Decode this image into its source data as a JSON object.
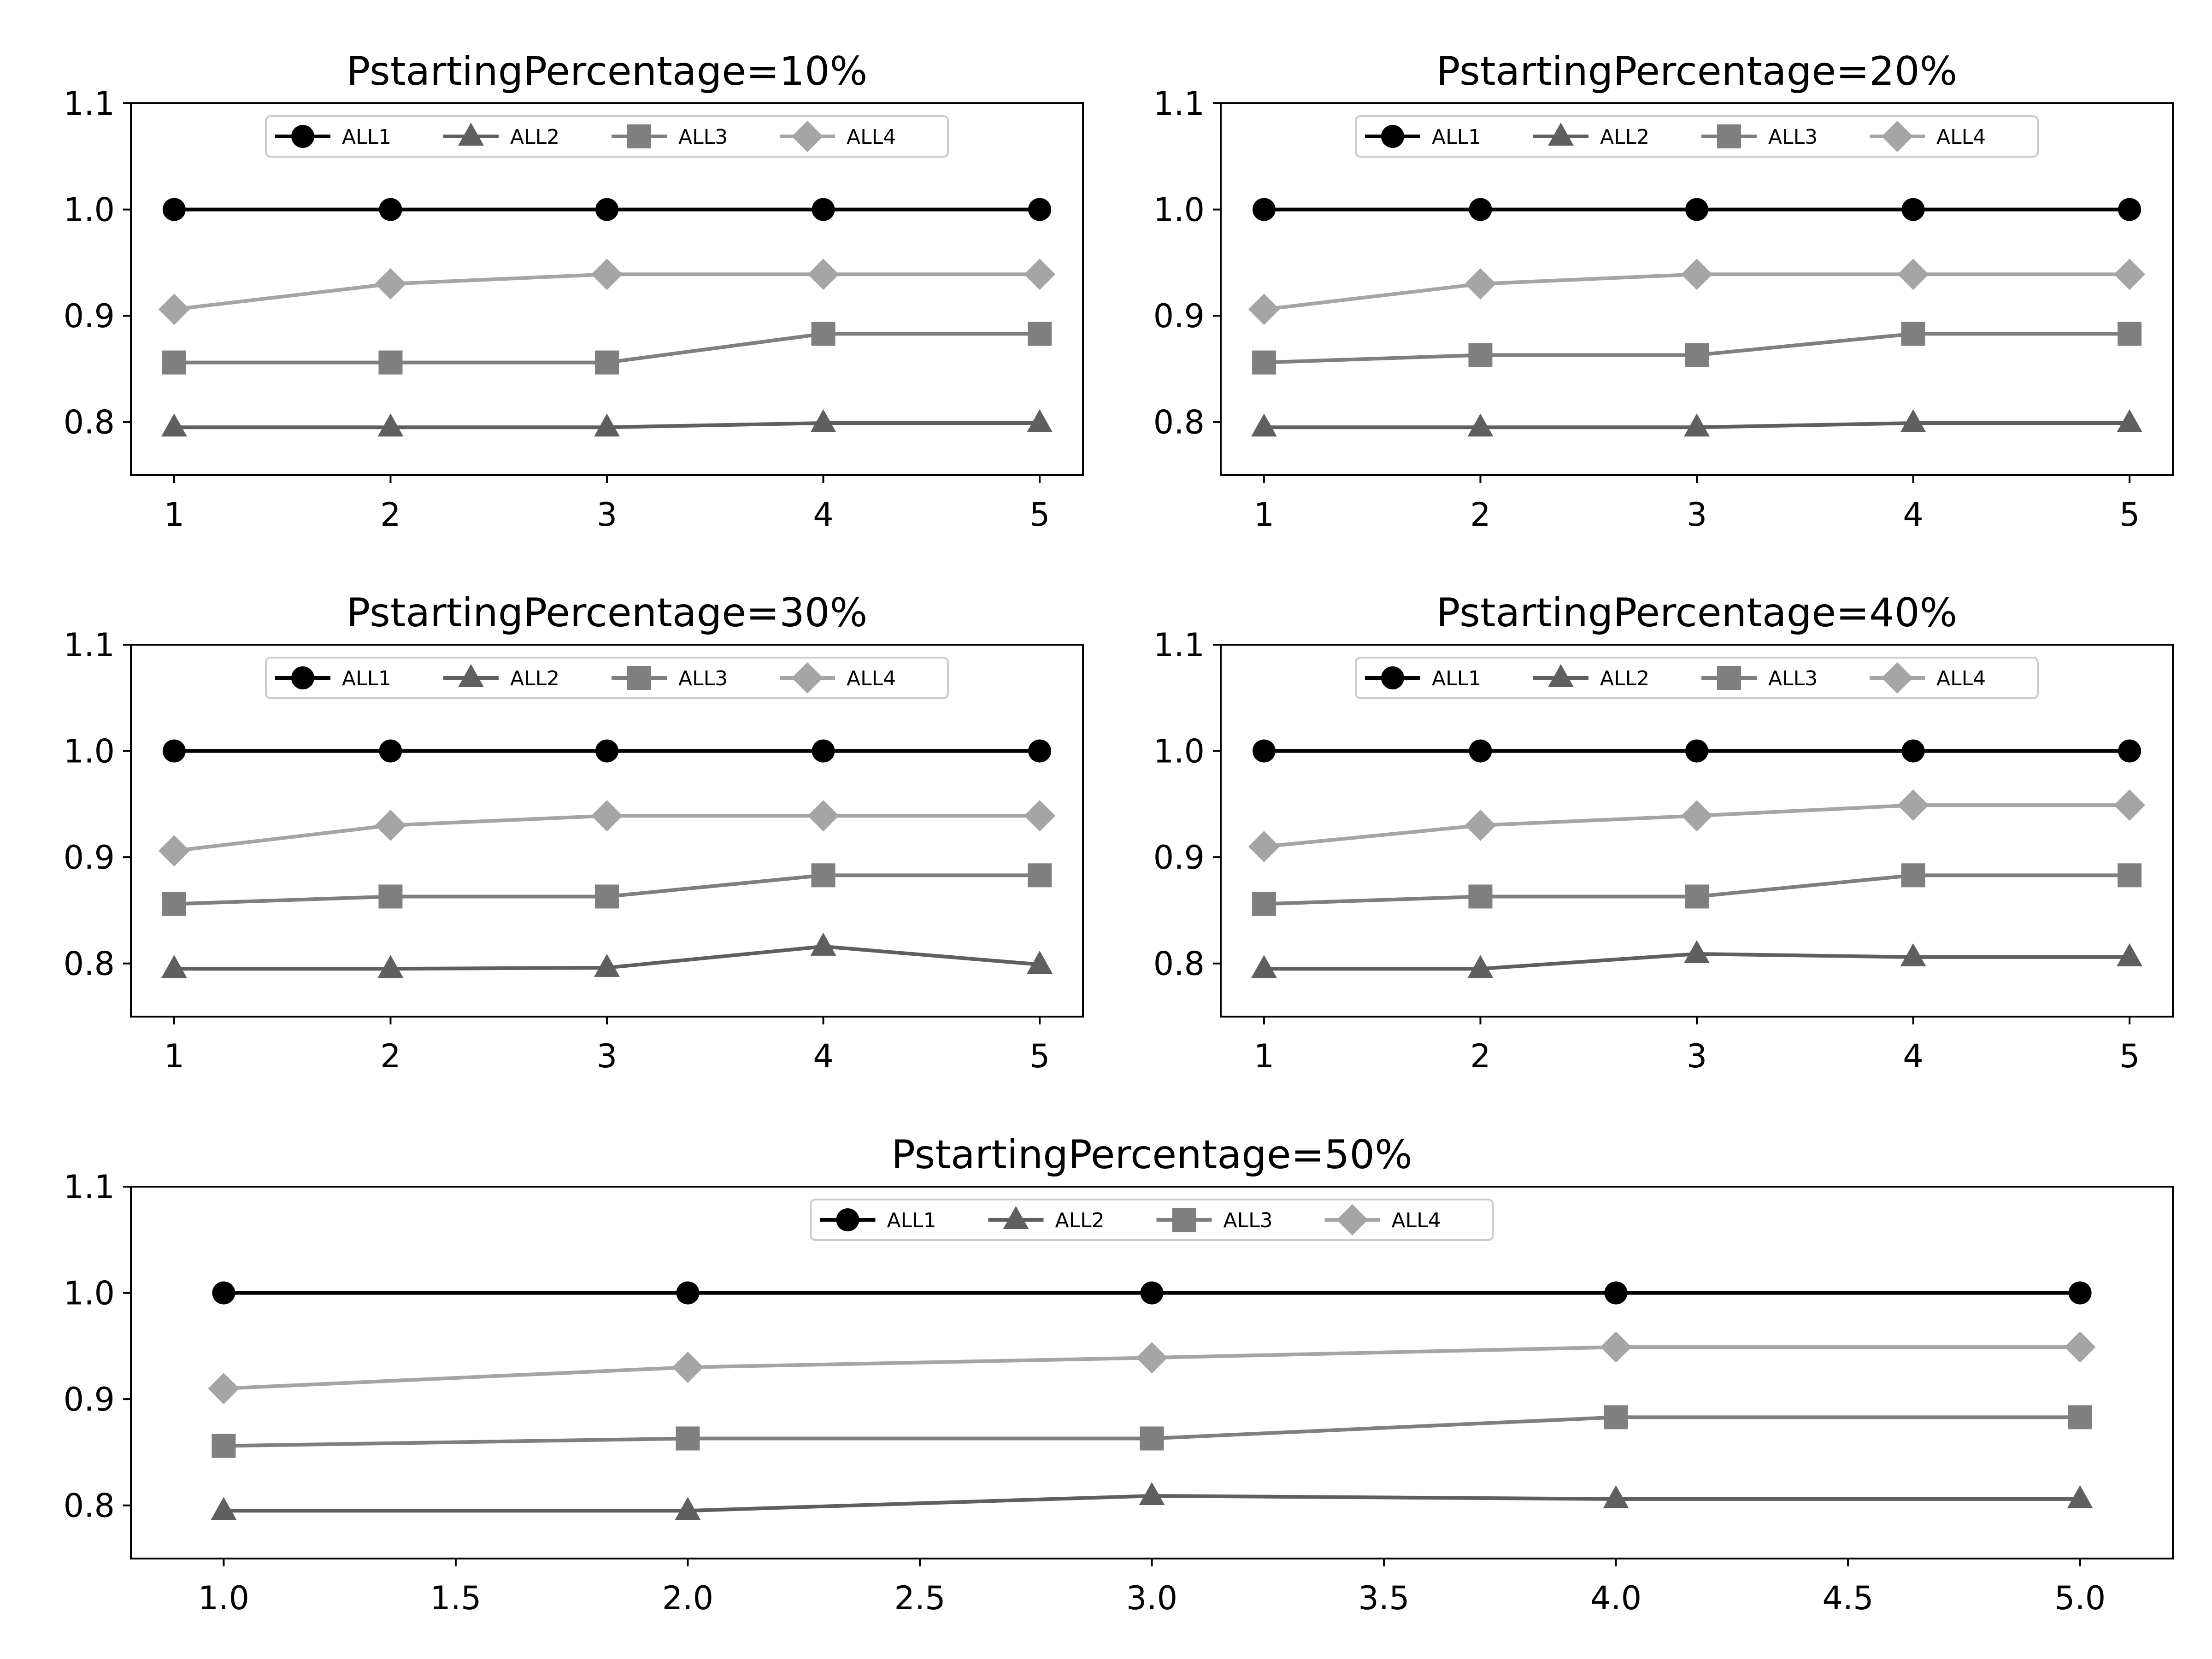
{
  "chart_data": [
    {
      "type": "line",
      "title": "PstartingPercentage=10%",
      "xlabel": "",
      "ylabel": "",
      "x": [
        1,
        2,
        3,
        4,
        5
      ],
      "xlim": [
        0.8,
        5.2
      ],
      "ylim": [
        0.75,
        1.1
      ],
      "xticks": [
        1,
        2,
        3,
        4,
        5
      ],
      "xtick_labels": [
        "1",
        "2",
        "3",
        "4",
        "5"
      ],
      "yticks": [
        0.8,
        0.9,
        1.0,
        1.1
      ],
      "ytick_labels": [
        "0.8",
        "0.9",
        "1.0",
        "1.1"
      ],
      "legend": "upper center",
      "series": [
        {
          "name": "ALL1",
          "color": "#000000",
          "marker": "circle",
          "values": [
            1.0,
            1.0,
            1.0,
            1.0,
            1.0
          ]
        },
        {
          "name": "ALL2",
          "color": "#5f5f5f",
          "marker": "triangle",
          "values": [
            0.795,
            0.795,
            0.795,
            0.799,
            0.799
          ]
        },
        {
          "name": "ALL3",
          "color": "#7f7f7f",
          "marker": "square",
          "values": [
            0.856,
            0.856,
            0.856,
            0.883,
            0.883
          ]
        },
        {
          "name": "ALL4",
          "color": "#a5a5a5",
          "marker": "diamond",
          "values": [
            0.906,
            0.93,
            0.939,
            0.939,
            0.939
          ]
        }
      ]
    },
    {
      "type": "line",
      "title": "PstartingPercentage=20%",
      "xlabel": "",
      "ylabel": "",
      "x": [
        1,
        2,
        3,
        4,
        5
      ],
      "xlim": [
        0.8,
        5.2
      ],
      "ylim": [
        0.75,
        1.1
      ],
      "xticks": [
        1,
        2,
        3,
        4,
        5
      ],
      "xtick_labels": [
        "1",
        "2",
        "3",
        "4",
        "5"
      ],
      "yticks": [
        0.8,
        0.9,
        1.0,
        1.1
      ],
      "ytick_labels": [
        "0.8",
        "0.9",
        "1.0",
        "1.1"
      ],
      "legend": "upper center",
      "series": [
        {
          "name": "ALL1",
          "color": "#000000",
          "marker": "circle",
          "values": [
            1.0,
            1.0,
            1.0,
            1.0,
            1.0
          ]
        },
        {
          "name": "ALL2",
          "color": "#5f5f5f",
          "marker": "triangle",
          "values": [
            0.795,
            0.795,
            0.795,
            0.799,
            0.799
          ]
        },
        {
          "name": "ALL3",
          "color": "#7f7f7f",
          "marker": "square",
          "values": [
            0.856,
            0.863,
            0.863,
            0.883,
            0.883
          ]
        },
        {
          "name": "ALL4",
          "color": "#a5a5a5",
          "marker": "diamond",
          "values": [
            0.906,
            0.93,
            0.939,
            0.939,
            0.939
          ]
        }
      ]
    },
    {
      "type": "line",
      "title": "PstartingPercentage=30%",
      "xlabel": "",
      "ylabel": "",
      "x": [
        1,
        2,
        3,
        4,
        5
      ],
      "xlim": [
        0.8,
        5.2
      ],
      "ylim": [
        0.75,
        1.1
      ],
      "xticks": [
        1,
        2,
        3,
        4,
        5
      ],
      "xtick_labels": [
        "1",
        "2",
        "3",
        "4",
        "5"
      ],
      "yticks": [
        0.8,
        0.9,
        1.0,
        1.1
      ],
      "ytick_labels": [
        "0.8",
        "0.9",
        "1.0",
        "1.1"
      ],
      "legend": "upper center",
      "series": [
        {
          "name": "ALL1",
          "color": "#000000",
          "marker": "circle",
          "values": [
            1.0,
            1.0,
            1.0,
            1.0,
            1.0
          ]
        },
        {
          "name": "ALL2",
          "color": "#5f5f5f",
          "marker": "triangle",
          "values": [
            0.795,
            0.795,
            0.796,
            0.816,
            0.799
          ]
        },
        {
          "name": "ALL3",
          "color": "#7f7f7f",
          "marker": "square",
          "values": [
            0.856,
            0.863,
            0.863,
            0.883,
            0.883
          ]
        },
        {
          "name": "ALL4",
          "color": "#a5a5a5",
          "marker": "diamond",
          "values": [
            0.906,
            0.93,
            0.939,
            0.939,
            0.939
          ]
        }
      ]
    },
    {
      "type": "line",
      "title": "PstartingPercentage=40%",
      "xlabel": "",
      "ylabel": "",
      "x": [
        1,
        2,
        3,
        4,
        5
      ],
      "xlim": [
        0.8,
        5.2
      ],
      "ylim": [
        0.75,
        1.1
      ],
      "xticks": [
        1,
        2,
        3,
        4,
        5
      ],
      "xtick_labels": [
        "1",
        "2",
        "3",
        "4",
        "5"
      ],
      "yticks": [
        0.8,
        0.9,
        1.0,
        1.1
      ],
      "ytick_labels": [
        "0.8",
        "0.9",
        "1.0",
        "1.1"
      ],
      "legend": "upper center",
      "series": [
        {
          "name": "ALL1",
          "color": "#000000",
          "marker": "circle",
          "values": [
            1.0,
            1.0,
            1.0,
            1.0,
            1.0
          ]
        },
        {
          "name": "ALL2",
          "color": "#5f5f5f",
          "marker": "triangle",
          "values": [
            0.795,
            0.795,
            0.809,
            0.806,
            0.806
          ]
        },
        {
          "name": "ALL3",
          "color": "#7f7f7f",
          "marker": "square",
          "values": [
            0.856,
            0.863,
            0.863,
            0.883,
            0.883
          ]
        },
        {
          "name": "ALL4",
          "color": "#a5a5a5",
          "marker": "diamond",
          "values": [
            0.91,
            0.93,
            0.939,
            0.949,
            0.949
          ]
        }
      ]
    },
    {
      "type": "line",
      "title": "PstartingPercentage=50%",
      "xlabel": "",
      "ylabel": "",
      "x": [
        1,
        2,
        3,
        4,
        5
      ],
      "xlim": [
        0.8,
        5.2
      ],
      "ylim": [
        0.75,
        1.1
      ],
      "xticks": [
        1.0,
        1.5,
        2.0,
        2.5,
        3.0,
        3.5,
        4.0,
        4.5,
        5.0
      ],
      "xtick_labels": [
        "1.0",
        "1.5",
        "2.0",
        "2.5",
        "3.0",
        "3.5",
        "4.0",
        "4.5",
        "5.0"
      ],
      "yticks": [
        0.8,
        0.9,
        1.0,
        1.1
      ],
      "ytick_labels": [
        "0.8",
        "0.9",
        "1.0",
        "1.1"
      ],
      "legend": "upper center",
      "series": [
        {
          "name": "ALL1",
          "color": "#000000",
          "marker": "circle",
          "values": [
            1.0,
            1.0,
            1.0,
            1.0,
            1.0
          ]
        },
        {
          "name": "ALL2",
          "color": "#5f5f5f",
          "marker": "triangle",
          "values": [
            0.795,
            0.795,
            0.809,
            0.806,
            0.806
          ]
        },
        {
          "name": "ALL3",
          "color": "#7f7f7f",
          "marker": "square",
          "values": [
            0.856,
            0.863,
            0.863,
            0.883,
            0.883
          ]
        },
        {
          "name": "ALL4",
          "color": "#a5a5a5",
          "marker": "diamond",
          "values": [
            0.91,
            0.93,
            0.939,
            0.949,
            0.949
          ]
        }
      ]
    }
  ]
}
